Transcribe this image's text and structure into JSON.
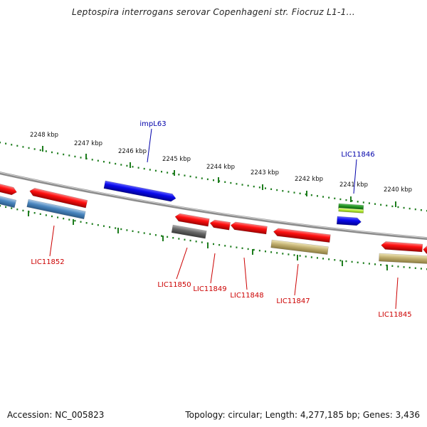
{
  "title": "Leptospira interrogans serovar Copenhageni str. Fiocruz L1-1...",
  "footer": {
    "accession": "Accession: NC_005823",
    "summary": "Topology: circular; Length: 4,277,185 bp; Genes: 3,436"
  },
  "colors": {
    "backbone": "#8c8c8c",
    "tick": "#1e7d1e",
    "red_label": "#cc0000",
    "blue_label": "#0000aa"
  },
  "ticks": [
    {
      "label": "2248 kbp"
    },
    {
      "label": "2247 kbp"
    },
    {
      "label": "2246 kbp"
    },
    {
      "label": "2245 kbp"
    },
    {
      "label": "2244 kbp"
    },
    {
      "label": "2243 kbp"
    },
    {
      "label": "2242 kbp"
    },
    {
      "label": "2241 kbp"
    },
    {
      "label": "2240 kbp"
    }
  ],
  "labels": [
    {
      "text": "impL63",
      "color": "blue"
    },
    {
      "text": "LIC11846",
      "color": "blue"
    },
    {
      "text": "LIC11852",
      "color": "red"
    },
    {
      "text": "LIC11850",
      "color": "red"
    },
    {
      "text": "LIC11849",
      "color": "red"
    },
    {
      "text": "LIC11848",
      "color": "red"
    },
    {
      "text": "LIC11847",
      "color": "red"
    },
    {
      "text": "LIC11845",
      "color": "red"
    }
  ],
  "features": [
    {
      "name": "gene-block",
      "color": "red"
    },
    {
      "name": "gene-block",
      "color": "steelblue"
    },
    {
      "name": "gene-block",
      "color": "red"
    },
    {
      "name": "gene-block",
      "color": "steelblue"
    },
    {
      "name": "gene-block",
      "color": "blue"
    },
    {
      "name": "gene-block",
      "color": "red"
    },
    {
      "name": "gene-block",
      "color": "gray"
    },
    {
      "name": "gene-block",
      "color": "red"
    },
    {
      "name": "gene-block",
      "color": "red"
    },
    {
      "name": "gene-block",
      "color": "red"
    },
    {
      "name": "gene-block",
      "color": "khaki"
    },
    {
      "name": "gene-block",
      "color": "green"
    },
    {
      "name": "gene-block",
      "color": "lime"
    },
    {
      "name": "gene-block",
      "color": "blue"
    },
    {
      "name": "gene-block",
      "color": "red"
    },
    {
      "name": "gene-block",
      "color": "red"
    },
    {
      "name": "gene-block",
      "color": "khaki"
    }
  ]
}
